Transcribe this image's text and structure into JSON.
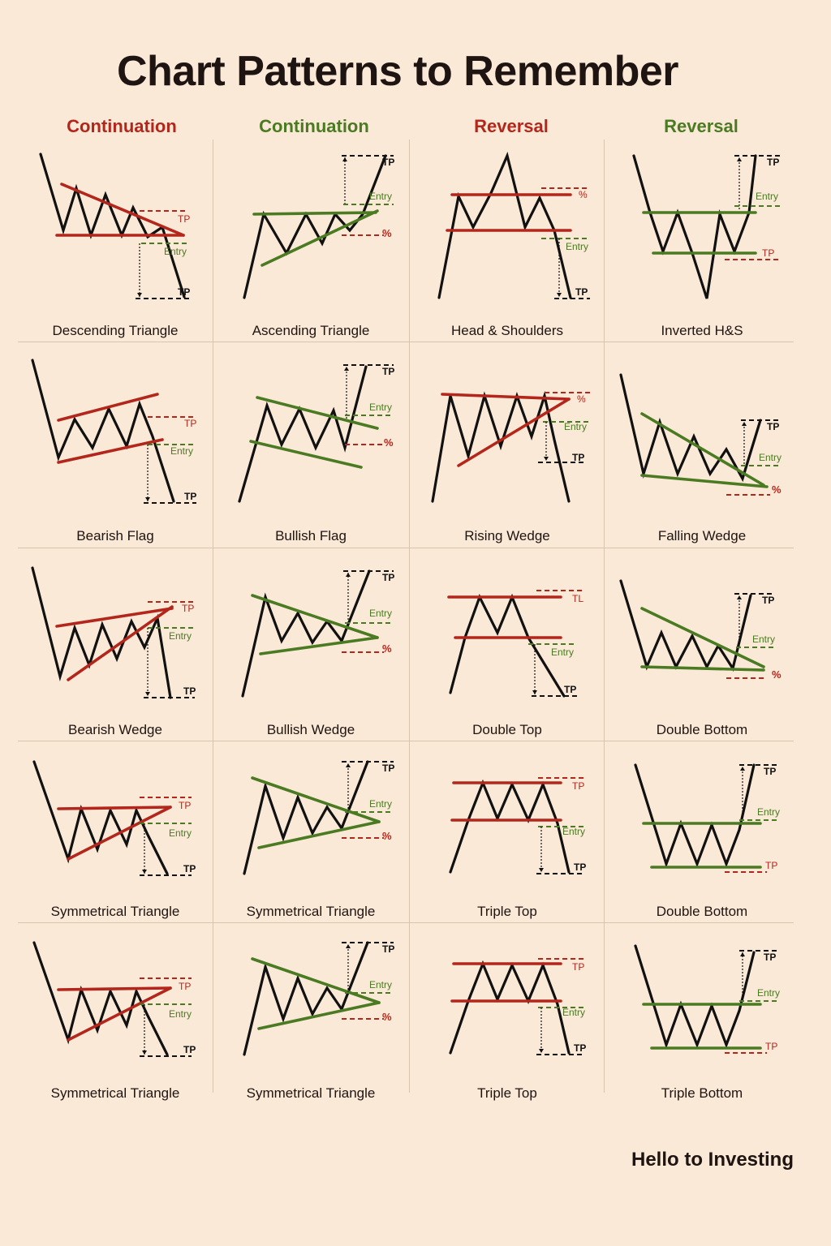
{
  "title": "Chart Patterns to Remember",
  "columns": [
    {
      "label": "Continuation",
      "tone": "red"
    },
    {
      "label": "Continuation",
      "tone": "green"
    },
    {
      "label": "Reversal",
      "tone": "red"
    },
    {
      "label": "Reversal",
      "tone": "green"
    }
  ],
  "colors": {
    "red": "#b3261c",
    "green": "#4a7a22",
    "black": "#111111",
    "background": "#fbe9d7"
  },
  "marker_labels": {
    "tp": "TP",
    "entry": "Entry",
    "stop": "%"
  },
  "patterns": [
    [
      "Descending Triangle",
      "Ascending Triangle",
      "Head & Shoulders",
      "Inverted H&S"
    ],
    [
      "Bearish Flag",
      "Bullish Flag",
      "Rising Wedge",
      "Falling Wedge"
    ],
    [
      "Bearish Wedge",
      "Bullish Wedge",
      "Double Top",
      "Double Bottom"
    ],
    [
      "Symmetrical Triangle",
      "Symmetrical Triangle",
      "Triple Top",
      "Double Bottom"
    ],
    [
      "Symmetrical Triangle",
      "Symmetrical Triangle",
      "Triple Top",
      "Triple Bottom"
    ]
  ],
  "footer": "Hello to Investing"
}
